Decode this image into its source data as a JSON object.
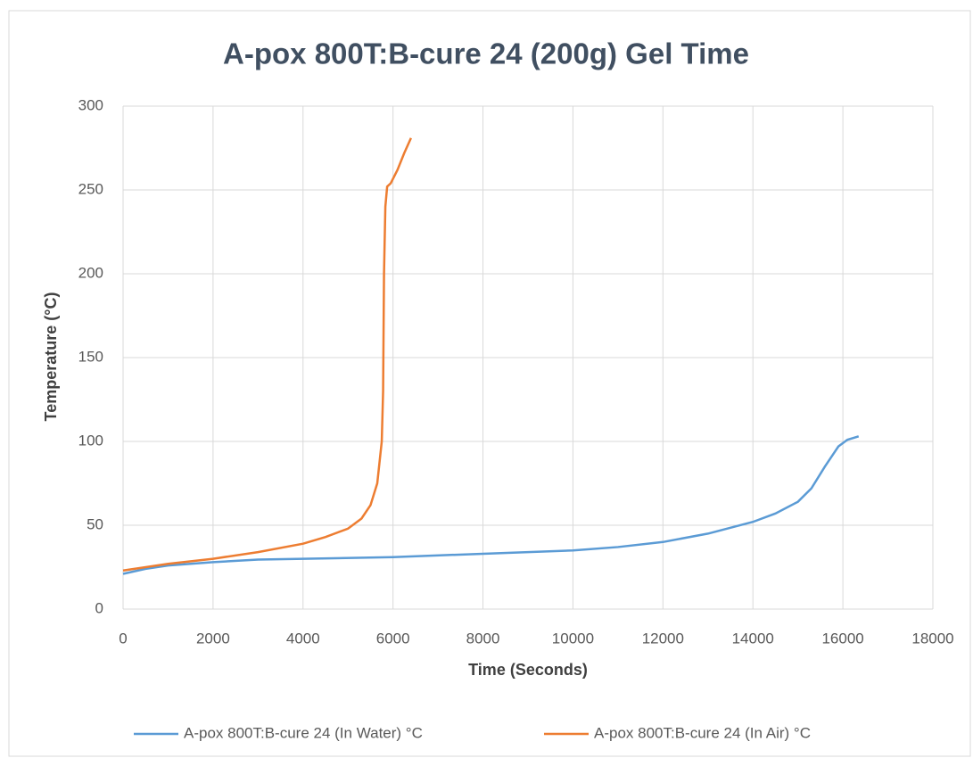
{
  "chart_data": {
    "type": "line",
    "title": "A-pox 800T:B-cure 24 (200g) Gel Time",
    "x_label": "Time (Seconds)",
    "y_label": "Temperature (°C)",
    "xlim": [
      0,
      18000
    ],
    "xticks": [
      0,
      2000,
      4000,
      6000,
      8000,
      10000,
      12000,
      14000,
      16000,
      18000
    ],
    "ylim": [
      0,
      300
    ],
    "yticks": [
      0,
      50,
      100,
      150,
      200,
      250,
      300
    ],
    "grid": true,
    "legend": "bottom",
    "series": [
      {
        "name": "A-pox 800T:B-cure 24 (In Water) °C",
        "color": "#5b9bd5",
        "x": [
          0,
          500,
          1000,
          2000,
          3000,
          4000,
          6000,
          8000,
          10000,
          11000,
          12000,
          13000,
          14000,
          14500,
          15000,
          15300,
          15600,
          15900,
          16100,
          16350
        ],
        "values": [
          21,
          24,
          26,
          28,
          29.5,
          30,
          31,
          33,
          35,
          37,
          40,
          45,
          52,
          57,
          64,
          72,
          85,
          97,
          101,
          103
        ]
      },
      {
        "name": "A-pox 800T:B-cure 24 (In Air) °C",
        "color": "#ed7d31",
        "x": [
          0,
          1000,
          2000,
          3000,
          4000,
          4500,
          5000,
          5300,
          5500,
          5650,
          5750,
          5780,
          5800,
          5830,
          5870,
          5950,
          6100,
          6250,
          6400
        ],
        "values": [
          23,
          27,
          30,
          34,
          39,
          43,
          48,
          54,
          62,
          75,
          100,
          130,
          200,
          240,
          252,
          254,
          262,
          272,
          281
        ]
      }
    ]
  }
}
